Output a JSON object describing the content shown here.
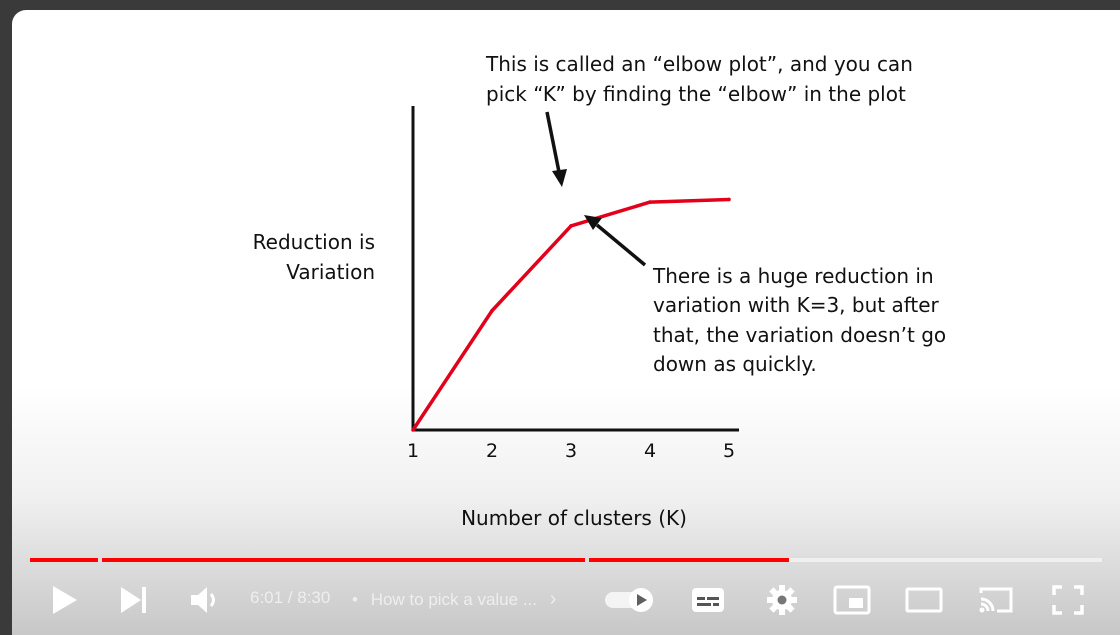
{
  "slide": {
    "callout_top_line1": "This is called an “elbow plot”, and you can",
    "callout_top_line2": "pick “K” by finding the “elbow” in the plot",
    "callout_right": [
      "There is a huge reduction in",
      "variation with K=3, but after",
      "that, the variation doesn’t go",
      "down as quickly."
    ],
    "ylabel_line1": "Reduction is",
    "ylabel_line2": "Variation",
    "xlabel": "Number of clusters (K)"
  },
  "chart_data": {
    "type": "line",
    "x": [
      1,
      2,
      3,
      4,
      5
    ],
    "series": [
      {
        "values": [
          0,
          0.45,
          0.77,
          0.86,
          0.87
        ]
      }
    ],
    "xticks": [
      "1",
      "2",
      "3",
      "4",
      "5"
    ],
    "xlabel": "Number of clusters (K)",
    "ylabel": "Reduction is Variation",
    "ylim": [
      0,
      1
    ],
    "line_color": "#e3001b",
    "grid": false
  },
  "player": {
    "time_current": "6:01",
    "time_total": "8:30",
    "time_display": "6:01 / 8:30",
    "separator": "•",
    "chapter_title": "How to pick a value ...",
    "chapter_chevron": "›",
    "progress_fraction": 0.708,
    "accent": "#ff0000",
    "autoplay_on": true,
    "icons": [
      "play-icon",
      "next-icon",
      "volume-icon",
      "autoplay-toggle",
      "subtitles-icon",
      "settings-icon",
      "miniplayer-icon",
      "theater-icon",
      "cast-icon",
      "fullscreen-icon"
    ]
  }
}
